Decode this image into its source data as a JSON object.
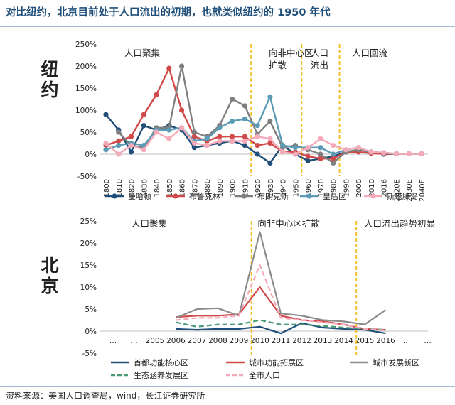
{
  "title": "对比纽约，北京目前处于人口流出的初期，也就类似纽约的 1950 年代",
  "source": "资料来源：美国人口调查局，wind，长江证券研究所",
  "colors": {
    "manhattan": "#1f4e79",
    "brooklyn": "#d04a4a",
    "bronx": "#7f7f7f",
    "queens": "#5b9bb5",
    "staten": "#f4aab8",
    "bj_core": "#1f4e79",
    "bj_expand": "#d04a4a",
    "bj_new": "#8c8c8c",
    "bj_eco": "#4a9a76",
    "bj_total": "#f4aab8",
    "divider": "#f2c12e"
  },
  "chart_data": [
    {
      "type": "line",
      "side_label": "纽约",
      "x": [
        "1800",
        "1810",
        "1820",
        "1830",
        "1840",
        "1850",
        "1860",
        "1870",
        "1880",
        "1890",
        "1900",
        "1910",
        "1920",
        "1930",
        "1940",
        "1950",
        "1960",
        "1970",
        "1980",
        "1990",
        "2000",
        "2010",
        "2016",
        "2020E",
        "2030E",
        "2040E"
      ],
      "y_ticks": [
        "-50%",
        "0%",
        "50%",
        "100%",
        "150%",
        "200%",
        "250%"
      ],
      "ylim": [
        -50,
        250
      ],
      "phases": [
        "人口聚集",
        "向非中心区扩散",
        "人口流出",
        "人口回流"
      ],
      "dividers_after": [
        "1910",
        "1950",
        "1980"
      ],
      "series": [
        {
          "name": "曼哈顿",
          "color_key": "manhattan",
          "style": "solid",
          "values": [
            90,
            55,
            5,
            65,
            55,
            65,
            55,
            15,
            20,
            25,
            30,
            20,
            0,
            -20,
            20,
            0,
            -15,
            -10,
            -5,
            5,
            10,
            5,
            0,
            1,
            1,
            1
          ]
        },
        {
          "name": "布鲁克林",
          "color_key": "brooklyn",
          "style": "solid",
          "values": [
            20,
            30,
            40,
            90,
            135,
            195,
            100,
            40,
            30,
            40,
            40,
            40,
            20,
            25,
            5,
            5,
            -5,
            -10,
            -10,
            5,
            5,
            2,
            1,
            1,
            1,
            1
          ]
        },
        {
          "name": "布朗克斯",
          "color_key": "bronx",
          "style": "solid",
          "values": [
            null,
            50,
            20,
            15,
            60,
            60,
            200,
            50,
            40,
            65,
            125,
            110,
            45,
            75,
            15,
            20,
            10,
            0,
            -20,
            5,
            10,
            5,
            3,
            1,
            1,
            1
          ]
        },
        {
          "name": "皇后区",
          "color_key": "queens",
          "style": "solid",
          "values": [
            10,
            20,
            25,
            20,
            55,
            55,
            60,
            30,
            35,
            60,
            75,
            80,
            65,
            130,
            20,
            15,
            15,
            15,
            0,
            10,
            15,
            5,
            3,
            1,
            1,
            1
          ]
        },
        {
          "name": "斯塔滕岛",
          "color_key": "staten",
          "style": "solid",
          "values": [
            25,
            0,
            20,
            10,
            50,
            35,
            60,
            25,
            20,
            30,
            30,
            30,
            40,
            35,
            5,
            0,
            15,
            35,
            20,
            10,
            15,
            5,
            3,
            1,
            1,
            1
          ]
        }
      ]
    },
    {
      "type": "line",
      "side_label": "北京",
      "x": [
        "…",
        "…",
        "2005",
        "2006",
        "2007",
        "2008",
        "2009",
        "2010",
        "2011",
        "2012",
        "2013",
        "2014",
        "2015",
        "2016",
        "…",
        "…"
      ],
      "y_ticks": [
        "-5%",
        "0%",
        "5%",
        "10%",
        "15%",
        "20%",
        "25%"
      ],
      "ylim": [
        -5,
        25
      ],
      "phases": [
        "人口聚集",
        "向非中心区扩散",
        "人口流出趋势初显"
      ],
      "dividers_after": [
        "2009",
        "2014"
      ],
      "series": [
        {
          "name": "首都功能核心区",
          "color_key": "bj_core",
          "style": "solid",
          "values": [
            null,
            null,
            null,
            0.5,
            0.3,
            0.5,
            0.5,
            1.0,
            -0.5,
            1.8,
            0.8,
            0.5,
            0.3,
            -0.5,
            null,
            null
          ]
        },
        {
          "name": "城市功能拓展区",
          "color_key": "bj_expand",
          "style": "solid",
          "values": [
            null,
            null,
            null,
            3.2,
            3.5,
            3.5,
            3.8,
            10.0,
            3.5,
            2.5,
            2.2,
            1.5,
            0.5,
            0.3,
            null,
            null
          ]
        },
        {
          "name": "城市发展新区",
          "color_key": "bj_new",
          "style": "solid",
          "values": [
            null,
            null,
            null,
            3.0,
            5.0,
            5.2,
            3.5,
            22.5,
            4.0,
            3.5,
            2.5,
            2.2,
            1.5,
            4.8,
            null,
            null
          ]
        },
        {
          "name": "生态涵养发展区",
          "color_key": "bj_eco",
          "style": "dashed",
          "values": [
            null,
            null,
            null,
            2.0,
            1.0,
            1.5,
            1.5,
            2.5,
            1.5,
            1.5,
            1.2,
            0.8,
            0.5,
            0.3,
            null,
            null
          ]
        },
        {
          "name": "全市人口",
          "color_key": "bj_total",
          "style": "dashed",
          "values": [
            null,
            null,
            null,
            2.5,
            3.0,
            3.0,
            3.5,
            15.0,
            3.0,
            2.5,
            2.0,
            1.5,
            0.5,
            0.2,
            null,
            null
          ]
        }
      ]
    }
  ]
}
